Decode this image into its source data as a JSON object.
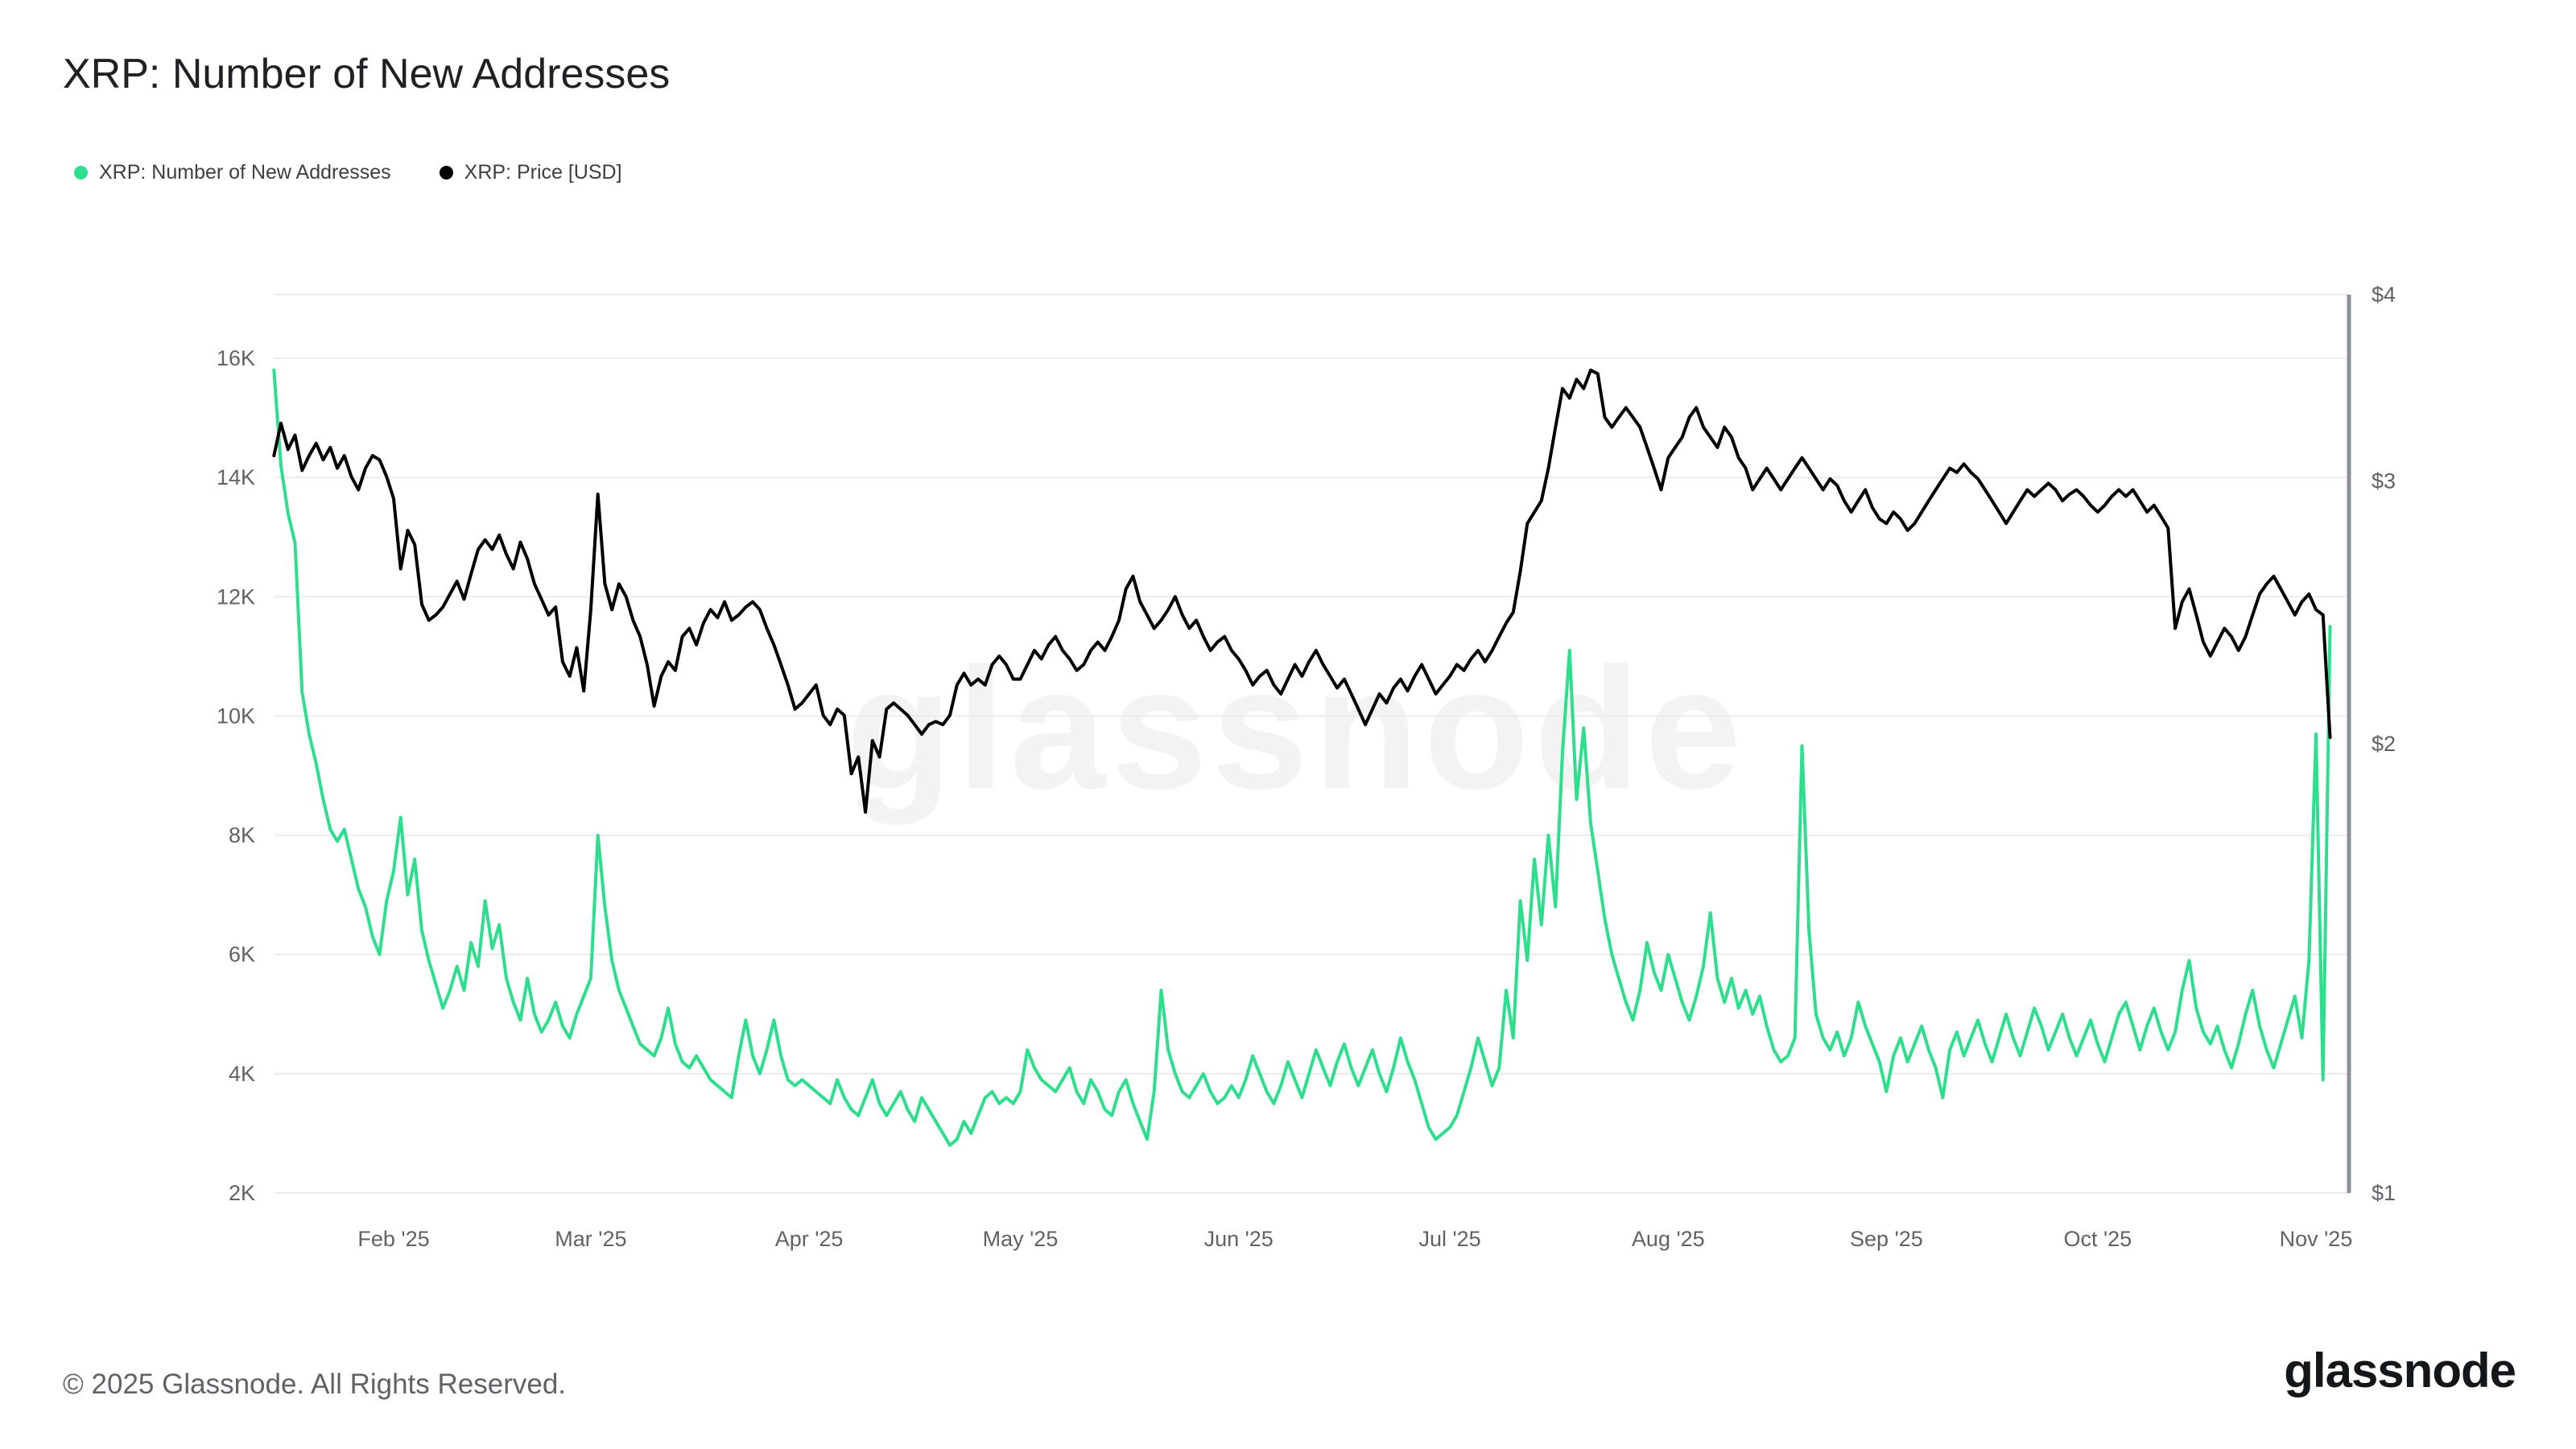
{
  "title": "XRP: Number of New Addresses",
  "legend": [
    {
      "label": "XRP: Number of New Addresses",
      "color": "#2ddf8d"
    },
    {
      "label": "XRP: Price [USD]",
      "color": "#000000"
    }
  ],
  "watermark": "glassnode",
  "footer": {
    "copyright": "© 2025 Glassnode. All Rights Reserved.",
    "brand": "glassnode"
  },
  "colors": {
    "addresses_line": "#2ddf8d",
    "price_line": "#000000",
    "gridline": "#ececec",
    "right_axis_line": "#8a8f98",
    "axis_text": "#5f6368"
  },
  "chart_data": {
    "type": "line",
    "title": "XRP: Number of New Addresses",
    "x_description": "one value per day; day 0 = left edge (mid-Jan 2025); month ticks mark the 1st of each month",
    "x_axis": {
      "tick_days": [
        17,
        45,
        76,
        106,
        137,
        167,
        198,
        229,
        259,
        290
      ],
      "tick_labels": [
        "Feb '25",
        "Mar '25",
        "Apr '25",
        "May '25",
        "Jun '25",
        "Jul '25",
        "Aug '25",
        "Sep '25",
        "Oct '25",
        "Nov '25"
      ],
      "domain_days": [
        0,
        292
      ]
    },
    "left_axis": {
      "name": "Number of New Addresses",
      "scale": "linear",
      "unit": "K addresses",
      "ticks": [
        2,
        4,
        6,
        8,
        10,
        12,
        14,
        16
      ],
      "tick_labels": [
        "2K",
        "4K",
        "6K",
        "8K",
        "10K",
        "12K",
        "14K",
        "16K"
      ],
      "range": [
        2,
        16.5
      ]
    },
    "right_axis": {
      "name": "XRP Price [USD]",
      "scale": "log",
      "ticks": [
        1,
        2,
        3,
        4
      ],
      "tick_labels": [
        "$1",
        "$2",
        "$3",
        "$4"
      ],
      "range": [
        1,
        4
      ]
    },
    "series": [
      {
        "id": "new-addresses",
        "name": "XRP: Number of New Addresses",
        "axis": "left",
        "color": "#2ddf8d",
        "unit": "K",
        "values": [
          15.8,
          14.2,
          13.4,
          12.9,
          10.4,
          9.7,
          9.2,
          8.6,
          8.1,
          7.9,
          8.1,
          7.6,
          7.1,
          6.8,
          6.3,
          6.0,
          6.9,
          7.4,
          8.3,
          7.0,
          7.6,
          6.4,
          5.9,
          5.5,
          5.1,
          5.4,
          5.8,
          5.4,
          6.2,
          5.8,
          6.9,
          6.1,
          6.5,
          5.6,
          5.2,
          4.9,
          5.6,
          5.0,
          4.7,
          4.9,
          5.2,
          4.8,
          4.6,
          5.0,
          5.3,
          5.6,
          8.0,
          6.8,
          5.9,
          5.4,
          5.1,
          4.8,
          4.5,
          4.4,
          4.3,
          4.6,
          5.1,
          4.5,
          4.2,
          4.1,
          4.3,
          4.1,
          3.9,
          3.8,
          3.7,
          3.6,
          4.3,
          4.9,
          4.3,
          4.0,
          4.4,
          4.9,
          4.3,
          3.9,
          3.8,
          3.9,
          3.8,
          3.7,
          3.6,
          3.5,
          3.9,
          3.6,
          3.4,
          3.3,
          3.6,
          3.9,
          3.5,
          3.3,
          3.5,
          3.7,
          3.4,
          3.2,
          3.6,
          3.4,
          3.2,
          3.0,
          2.8,
          2.9,
          3.2,
          3.0,
          3.3,
          3.6,
          3.7,
          3.5,
          3.6,
          3.5,
          3.7,
          4.4,
          4.1,
          3.9,
          3.8,
          3.7,
          3.9,
          4.1,
          3.7,
          3.5,
          3.9,
          3.7,
          3.4,
          3.3,
          3.7,
          3.9,
          3.5,
          3.2,
          2.9,
          3.7,
          5.4,
          4.4,
          4.0,
          3.7,
          3.6,
          3.8,
          4.0,
          3.7,
          3.5,
          3.6,
          3.8,
          3.6,
          3.9,
          4.3,
          4.0,
          3.7,
          3.5,
          3.8,
          4.2,
          3.9,
          3.6,
          4.0,
          4.4,
          4.1,
          3.8,
          4.2,
          4.5,
          4.1,
          3.8,
          4.1,
          4.4,
          4.0,
          3.7,
          4.1,
          4.6,
          4.2,
          3.9,
          3.5,
          3.1,
          2.9,
          3.0,
          3.1,
          3.3,
          3.7,
          4.1,
          4.6,
          4.2,
          3.8,
          4.1,
          5.4,
          4.6,
          6.9,
          5.9,
          7.6,
          6.5,
          8.0,
          6.8,
          9.4,
          11.1,
          8.6,
          9.8,
          8.2,
          7.4,
          6.6,
          6.0,
          5.6,
          5.2,
          4.9,
          5.4,
          6.2,
          5.7,
          5.4,
          6.0,
          5.6,
          5.2,
          4.9,
          5.3,
          5.8,
          6.7,
          5.6,
          5.2,
          5.6,
          5.1,
          5.4,
          5.0,
          5.3,
          4.8,
          4.4,
          4.2,
          4.3,
          4.6,
          9.5,
          6.4,
          5.0,
          4.6,
          4.4,
          4.7,
          4.3,
          4.6,
          5.2,
          4.8,
          4.5,
          4.2,
          3.7,
          4.3,
          4.6,
          4.2,
          4.5,
          4.8,
          4.4,
          4.1,
          3.6,
          4.4,
          4.7,
          4.3,
          4.6,
          4.9,
          4.5,
          4.2,
          4.6,
          5.0,
          4.6,
          4.3,
          4.7,
          5.1,
          4.8,
          4.4,
          4.7,
          5.0,
          4.6,
          4.3,
          4.6,
          4.9,
          4.5,
          4.2,
          4.6,
          5.0,
          5.2,
          4.8,
          4.4,
          4.8,
          5.1,
          4.7,
          4.4,
          4.7,
          5.4,
          5.9,
          5.1,
          4.7,
          4.5,
          4.8,
          4.4,
          4.1,
          4.5,
          5.0,
          5.4,
          4.8,
          4.4,
          4.1,
          4.5,
          4.9,
          5.3,
          4.6,
          5.9,
          9.7,
          3.9,
          11.5
        ]
      },
      {
        "id": "price",
        "name": "XRP: Price [USD]",
        "axis": "right",
        "color": "#000000",
        "unit": "USD",
        "values": [
          3.12,
          3.28,
          3.15,
          3.22,
          3.05,
          3.12,
          3.18,
          3.1,
          3.16,
          3.06,
          3.12,
          3.02,
          2.96,
          3.06,
          3.12,
          3.1,
          3.02,
          2.92,
          2.62,
          2.78,
          2.72,
          2.48,
          2.42,
          2.44,
          2.47,
          2.52,
          2.57,
          2.5,
          2.6,
          2.7,
          2.74,
          2.7,
          2.76,
          2.68,
          2.62,
          2.73,
          2.66,
          2.56,
          2.5,
          2.44,
          2.47,
          2.27,
          2.22,
          2.32,
          2.17,
          2.46,
          2.94,
          2.56,
          2.46,
          2.56,
          2.51,
          2.42,
          2.36,
          2.26,
          2.12,
          2.22,
          2.27,
          2.24,
          2.36,
          2.39,
          2.33,
          2.41,
          2.46,
          2.43,
          2.49,
          2.42,
          2.44,
          2.47,
          2.49,
          2.46,
          2.39,
          2.33,
          2.26,
          2.19,
          2.11,
          2.13,
          2.16,
          2.19,
          2.09,
          2.06,
          2.11,
          2.09,
          1.91,
          1.96,
          1.8,
          2.01,
          1.96,
          2.11,
          2.13,
          2.11,
          2.09,
          2.06,
          2.03,
          2.06,
          2.07,
          2.06,
          2.09,
          2.19,
          2.23,
          2.19,
          2.21,
          2.19,
          2.26,
          2.29,
          2.26,
          2.21,
          2.21,
          2.26,
          2.31,
          2.28,
          2.33,
          2.36,
          2.31,
          2.28,
          2.24,
          2.26,
          2.31,
          2.34,
          2.31,
          2.36,
          2.42,
          2.54,
          2.59,
          2.49,
          2.44,
          2.39,
          2.42,
          2.46,
          2.51,
          2.44,
          2.39,
          2.42,
          2.36,
          2.31,
          2.34,
          2.36,
          2.31,
          2.28,
          2.24,
          2.19,
          2.22,
          2.24,
          2.19,
          2.16,
          2.21,
          2.26,
          2.22,
          2.27,
          2.31,
          2.26,
          2.22,
          2.18,
          2.21,
          2.16,
          2.11,
          2.06,
          2.11,
          2.16,
          2.13,
          2.18,
          2.21,
          2.17,
          2.22,
          2.26,
          2.21,
          2.16,
          2.19,
          2.22,
          2.26,
          2.24,
          2.28,
          2.31,
          2.27,
          2.31,
          2.36,
          2.41,
          2.45,
          2.61,
          2.81,
          2.86,
          2.91,
          3.06,
          3.26,
          3.46,
          3.41,
          3.51,
          3.46,
          3.56,
          3.54,
          3.31,
          3.26,
          3.31,
          3.36,
          3.31,
          3.26,
          3.16,
          3.06,
          2.96,
          3.11,
          3.16,
          3.21,
          3.31,
          3.36,
          3.26,
          3.21,
          3.16,
          3.26,
          3.21,
          3.11,
          3.06,
          2.96,
          3.01,
          3.06,
          3.01,
          2.96,
          3.01,
          3.06,
          3.11,
          3.06,
          3.01,
          2.96,
          3.01,
          2.98,
          2.91,
          2.86,
          2.91,
          2.96,
          2.88,
          2.83,
          2.81,
          2.86,
          2.83,
          2.78,
          2.81,
          2.86,
          2.91,
          2.96,
          3.01,
          3.06,
          3.04,
          3.08,
          3.04,
          3.01,
          2.96,
          2.91,
          2.86,
          2.81,
          2.86,
          2.91,
          2.96,
          2.93,
          2.96,
          2.99,
          2.96,
          2.91,
          2.94,
          2.96,
          2.93,
          2.89,
          2.86,
          2.89,
          2.93,
          2.96,
          2.93,
          2.96,
          2.91,
          2.86,
          2.89,
          2.84,
          2.79,
          2.39,
          2.49,
          2.54,
          2.44,
          2.34,
          2.29,
          2.34,
          2.39,
          2.36,
          2.31,
          2.36,
          2.44,
          2.52,
          2.56,
          2.59,
          2.54,
          2.49,
          2.44,
          2.49,
          2.52,
          2.46,
          2.44,
          2.02
        ]
      }
    ]
  }
}
